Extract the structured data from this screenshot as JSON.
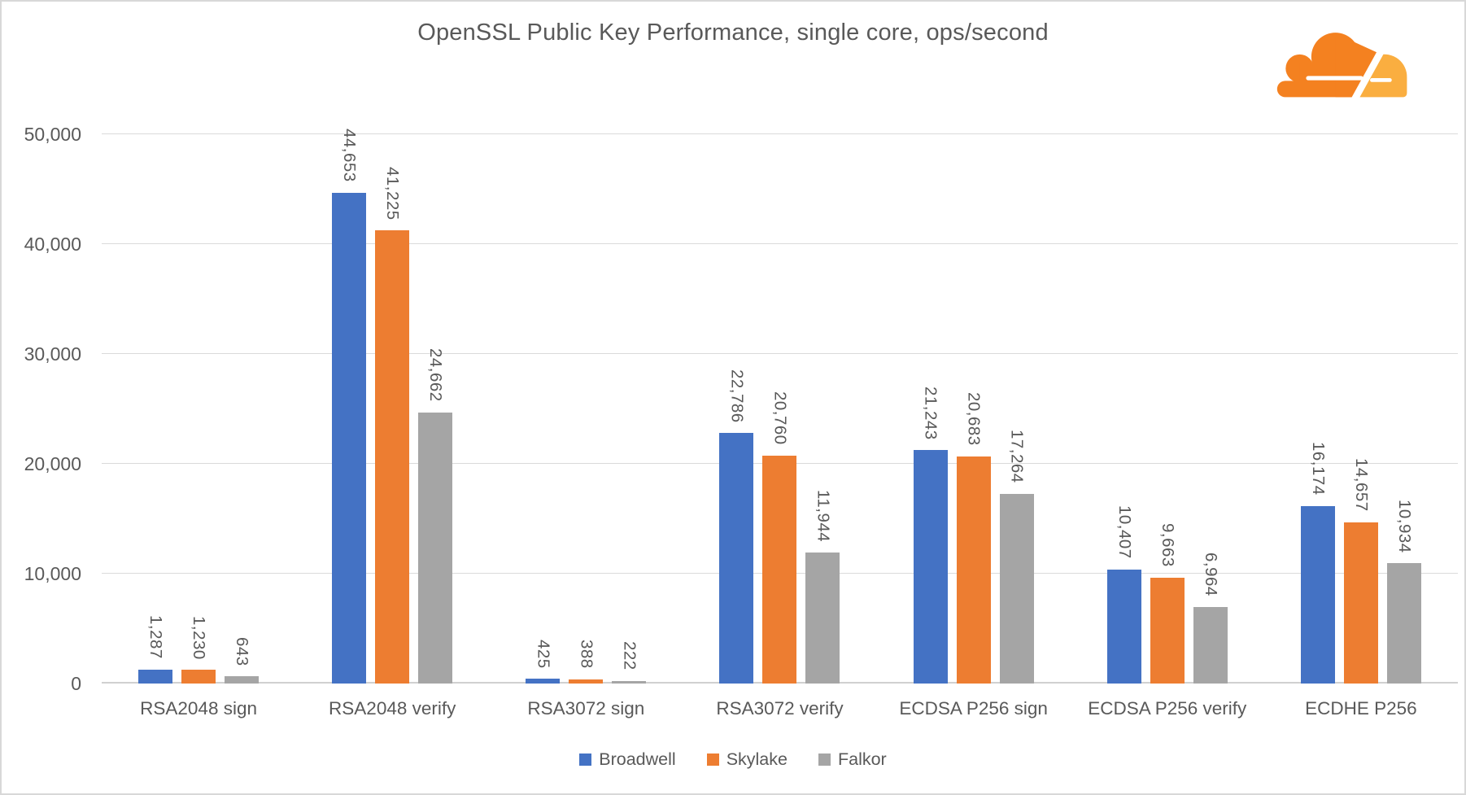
{
  "chart_data": {
    "type": "bar",
    "title": "OpenSSL Public Key Performance, single core, ops/second",
    "categories": [
      "RSA2048 sign",
      "RSA2048 verify",
      "RSA3072 sign",
      "RSA3072 verify",
      "ECDSA P256 sign",
      "ECDSA P256 verify",
      "ECDHE P256"
    ],
    "series": [
      {
        "name": "Broadwell",
        "color": "#4472C4",
        "values": [
          1287,
          44653,
          425,
          22786,
          21243,
          10407,
          16174
        ],
        "value_labels": [
          "1,287",
          "44,653",
          "425",
          "22,786",
          "21,243",
          "10,407",
          "16,174"
        ]
      },
      {
        "name": "Skylake",
        "color": "#ED7D31",
        "values": [
          1230,
          41225,
          388,
          20760,
          20683,
          9663,
          14657
        ],
        "value_labels": [
          "1,230",
          "41,225",
          "388",
          "20,760",
          "20,683",
          "9,663",
          "14,657"
        ]
      },
      {
        "name": "Falkor",
        "color": "#A5A5A5",
        "values": [
          643,
          24662,
          222,
          11944,
          17264,
          6964,
          10934
        ],
        "value_labels": [
          "643",
          "24,662",
          "222",
          "11,944",
          "17,264",
          "6,964",
          "10,934"
        ]
      }
    ],
    "ylim": [
      0,
      50000
    ],
    "yticks": [
      {
        "value": 0,
        "label": "0"
      },
      {
        "value": 10000,
        "label": "10,000"
      },
      {
        "value": 20000,
        "label": "20,000"
      },
      {
        "value": 30000,
        "label": "30,000"
      },
      {
        "value": 40000,
        "label": "40,000"
      },
      {
        "value": 50000,
        "label": "50,000"
      }
    ],
    "grid": true,
    "legend_position": "bottom",
    "text_color": "#595959",
    "gridline_color": "#DADADA"
  },
  "logo": {
    "name": "cloudflare-logo",
    "primary_color": "#F48120",
    "secondary_color": "#FAAE40"
  }
}
